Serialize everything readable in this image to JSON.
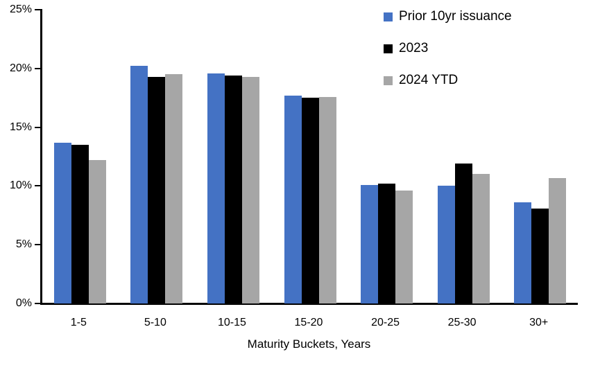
{
  "chart_data": {
    "type": "bar",
    "categories": [
      "1-5",
      "5-10",
      "10-15",
      "15-20",
      "20-25",
      "25-30",
      "30+"
    ],
    "series": [
      {
        "name": "Prior 10yr issuance",
        "key": "prior-10yr-issuance",
        "color": "#4472C4",
        "values": [
          13.7,
          20.2,
          19.6,
          17.7,
          10.1,
          10.0,
          8.6
        ]
      },
      {
        "name": "2023",
        "key": "2023",
        "color": "#000000",
        "values": [
          13.5,
          19.3,
          19.4,
          17.5,
          10.2,
          11.9,
          8.1
        ]
      },
      {
        "name": "2024 YTD",
        "key": "2024-ytd",
        "color": "#A6A6A6",
        "values": [
          12.2,
          19.5,
          19.3,
          17.6,
          9.6,
          11.0,
          10.7
        ]
      }
    ],
    "xlabel": "Maturity Buckets, Years",
    "ylabel": "",
    "ylim": [
      0,
      25
    ],
    "ytick_step": 5,
    "ytick_labels": [
      "0%",
      "5%",
      "10%",
      "15%",
      "20%",
      "25%"
    ],
    "legend_position": "top-right",
    "grid": false,
    "background": "#FFFFFF",
    "axis_color": "#000000"
  }
}
